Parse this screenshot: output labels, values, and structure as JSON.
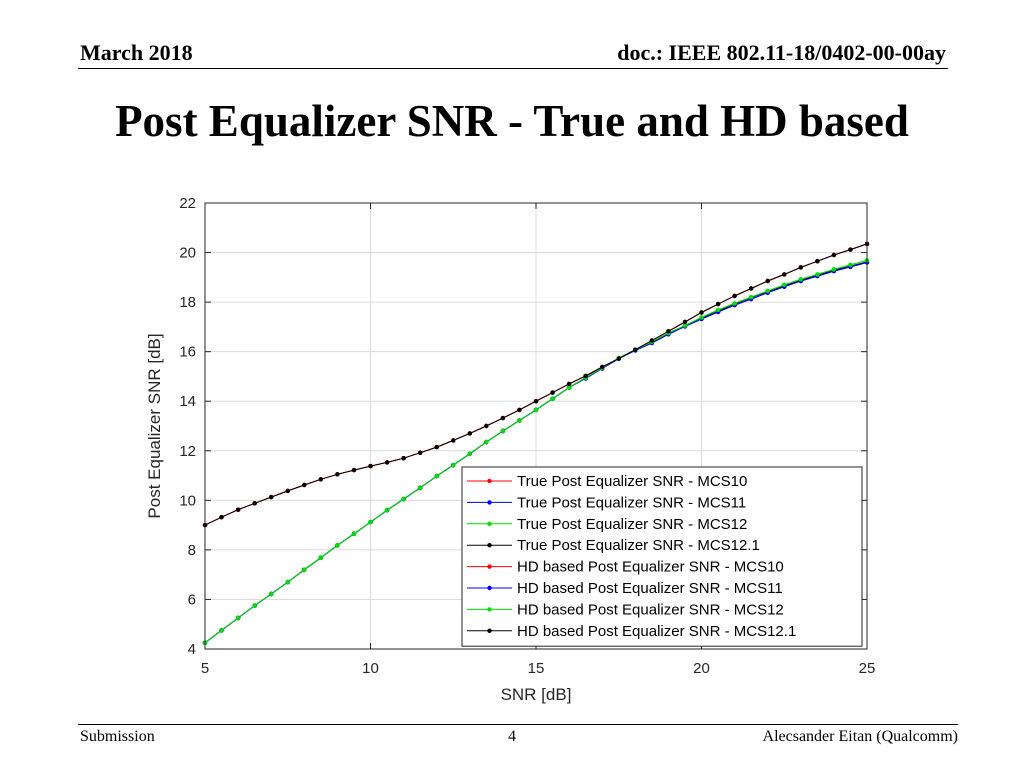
{
  "header": {
    "date": "March 2018",
    "doc_id": "doc.: IEEE 802.11-18/0402-00-00ay"
  },
  "slide_title": "Post Equalizer SNR - True and HD based",
  "footer": {
    "left": "Submission",
    "page_number": "4",
    "author": "Alecsander Eitan (Qualcomm)"
  },
  "chart_data": {
    "type": "line",
    "xlabel": "SNR [dB]",
    "ylabel": "Post Equalizer SNR [dB]",
    "xlim": [
      5,
      25
    ],
    "ylim": [
      4,
      22
    ],
    "xticks": [
      5,
      10,
      15,
      20,
      25
    ],
    "yticks": [
      4,
      6,
      8,
      10,
      12,
      14,
      16,
      18,
      20,
      22
    ],
    "grid": true,
    "legend_position": "bottom-right",
    "x": [
      5,
      5.5,
      6,
      6.5,
      7,
      7.5,
      8,
      8.5,
      9,
      9.5,
      10,
      10.5,
      11,
      11.5,
      12,
      12.5,
      13,
      13.5,
      14,
      14.5,
      15,
      15.5,
      16,
      16.5,
      17,
      17.5,
      18,
      18.5,
      19,
      19.5,
      20,
      20.5,
      21,
      21.5,
      22,
      22.5,
      23,
      23.5,
      24,
      24.5,
      25
    ],
    "series": [
      {
        "name": "True Post Equalizer SNR - MCS10",
        "color": "#ff0000",
        "values": [
          9.0,
          9.32,
          9.62,
          9.88,
          10.13,
          10.38,
          10.62,
          10.85,
          11.05,
          11.22,
          11.38,
          11.53,
          11.7,
          11.92,
          12.15,
          12.42,
          12.7,
          13.0,
          13.32,
          13.65,
          14.0,
          14.35,
          14.7,
          15.02,
          15.38,
          15.72,
          16.08,
          16.45,
          16.82,
          17.2,
          17.58,
          17.92,
          18.25,
          18.55,
          18.85,
          19.12,
          19.4,
          19.65,
          19.9,
          20.12,
          20.35
        ]
      },
      {
        "name": "True Post Equalizer SNR - MCS11",
        "color": "#0000ff",
        "values": [
          4.25,
          4.75,
          5.25,
          5.75,
          6.22,
          6.7,
          7.2,
          7.68,
          8.18,
          8.65,
          9.12,
          9.6,
          10.05,
          10.5,
          10.98,
          11.42,
          11.88,
          12.35,
          12.8,
          13.22,
          13.65,
          14.1,
          14.55,
          14.92,
          15.32,
          15.72,
          16.05,
          16.35,
          16.7,
          17.02,
          17.32,
          17.6,
          17.88,
          18.12,
          18.38,
          18.62,
          18.85,
          19.05,
          19.25,
          19.42,
          19.6
        ]
      },
      {
        "name": "True Post Equalizer SNR - MCS12",
        "color": "#00dd00",
        "values": [
          4.25,
          4.75,
          5.25,
          5.75,
          6.22,
          6.7,
          7.2,
          7.68,
          8.18,
          8.65,
          9.12,
          9.6,
          10.05,
          10.5,
          10.98,
          11.42,
          11.88,
          12.35,
          12.8,
          13.22,
          13.65,
          14.1,
          14.55,
          14.95,
          15.35,
          15.75,
          16.08,
          16.4,
          16.75,
          17.05,
          17.38,
          17.68,
          17.95,
          18.2,
          18.45,
          18.7,
          18.92,
          19.12,
          19.32,
          19.5,
          19.68
        ]
      },
      {
        "name": "True Post Equalizer SNR - MCS12.1",
        "color": "#000000",
        "values": [
          4.25,
          4.75,
          5.25,
          5.75,
          6.22,
          6.7,
          7.2,
          7.68,
          8.18,
          8.65,
          9.12,
          9.6,
          10.05,
          10.5,
          10.98,
          11.42,
          11.88,
          12.35,
          12.8,
          13.22,
          13.65,
          14.1,
          14.55,
          14.95,
          15.35,
          15.72,
          16.08,
          16.4,
          16.72,
          17.05,
          17.35,
          17.65,
          17.92,
          18.18,
          18.42,
          18.65,
          18.88,
          19.08,
          19.28,
          19.45,
          19.62
        ]
      },
      {
        "name": "HD based Post Equalizer SNR - MCS10",
        "color": "#ff0000",
        "values": [
          9.0,
          9.32,
          9.62,
          9.88,
          10.13,
          10.38,
          10.62,
          10.85,
          11.05,
          11.22,
          11.38,
          11.53,
          11.7,
          11.92,
          12.15,
          12.42,
          12.7,
          13.0,
          13.32,
          13.65,
          14.0,
          14.35,
          14.7,
          15.02,
          15.38,
          15.72,
          16.08,
          16.45,
          16.82,
          17.2,
          17.58,
          17.92,
          18.25,
          18.55,
          18.85,
          19.12,
          19.4,
          19.65,
          19.9,
          20.12,
          20.35
        ]
      },
      {
        "name": "HD based Post Equalizer SNR - MCS11",
        "color": "#0000ff",
        "values": [
          4.25,
          4.75,
          5.25,
          5.75,
          6.22,
          6.7,
          7.2,
          7.68,
          8.18,
          8.65,
          9.12,
          9.6,
          10.05,
          10.5,
          10.98,
          11.42,
          11.88,
          12.35,
          12.8,
          13.22,
          13.65,
          14.1,
          14.55,
          14.92,
          15.32,
          15.72,
          16.05,
          16.35,
          16.7,
          17.02,
          17.32,
          17.6,
          17.88,
          18.12,
          18.38,
          18.62,
          18.85,
          19.05,
          19.25,
          19.42,
          19.6
        ]
      },
      {
        "name": "HD based Post Equalizer SNR - MCS12",
        "color": "#00dd00",
        "values": [
          4.25,
          4.75,
          5.25,
          5.75,
          6.22,
          6.7,
          7.2,
          7.68,
          8.18,
          8.65,
          9.12,
          9.6,
          10.05,
          10.5,
          10.98,
          11.42,
          11.88,
          12.35,
          12.8,
          13.22,
          13.65,
          14.1,
          14.55,
          14.95,
          15.35,
          15.75,
          16.08,
          16.4,
          16.75,
          17.05,
          17.38,
          17.68,
          17.95,
          18.2,
          18.45,
          18.7,
          18.92,
          19.12,
          19.32,
          19.5,
          19.68
        ]
      },
      {
        "name": "HD based Post Equalizer SNR - MCS12.1",
        "color": "#000000",
        "values": [
          9.0,
          9.32,
          9.62,
          9.88,
          10.13,
          10.38,
          10.62,
          10.85,
          11.05,
          11.22,
          11.38,
          11.53,
          11.7,
          11.92,
          12.15,
          12.42,
          12.7,
          13.0,
          13.32,
          13.65,
          14.0,
          14.35,
          14.7,
          15.02,
          15.38,
          15.72,
          16.08,
          16.45,
          16.82,
          17.2,
          17.58,
          17.92,
          18.25,
          18.55,
          18.85,
          19.12,
          19.4,
          19.65,
          19.9,
          20.12,
          20.35
        ]
      }
    ]
  }
}
